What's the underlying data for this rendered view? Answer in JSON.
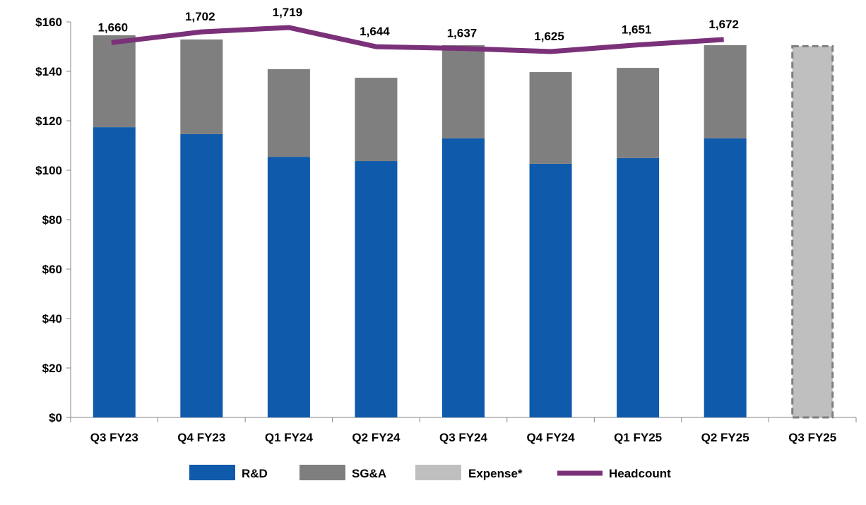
{
  "chart_data": {
    "type": "bar",
    "stacked": true,
    "categories": [
      "Q3 FY23",
      "Q4 FY23",
      "Q1 FY24",
      "Q2 FY24",
      "Q3 FY24",
      "Q4 FY24",
      "Q1 FY25",
      "Q2 FY25",
      "Q3 FY25"
    ],
    "ylim": [
      0,
      160
    ],
    "yticks": [
      0,
      20,
      40,
      60,
      80,
      100,
      120,
      140,
      160
    ],
    "ytick_labels": [
      "$0",
      "$20",
      "$40",
      "$60",
      "$80",
      "$100",
      "$120",
      "$140",
      "$160"
    ],
    "y2lim_hidden": [
      193,
      1741
    ],
    "grid": false,
    "legend_position": "bottom",
    "series": [
      {
        "name": "R&D",
        "type": "bar",
        "color": "#0F5AAA",
        "values": [
          117.4,
          114.6,
          105.4,
          103.7,
          112.9,
          102.6,
          104.9,
          112.9,
          null
        ]
      },
      {
        "name": "SG&A",
        "type": "bar",
        "color": "#7F7F7F",
        "values": [
          37.2,
          38.3,
          35.5,
          33.7,
          37.7,
          37.1,
          36.5,
          37.7,
          null
        ]
      },
      {
        "name": "Expense*",
        "type": "bar",
        "color": "#BFBFBF",
        "border": "dashed",
        "values": [
          null,
          null,
          null,
          null,
          null,
          null,
          null,
          null,
          150.6
        ]
      },
      {
        "name": "Headcount",
        "type": "line",
        "axis": "secondary",
        "color": "#7B3179",
        "values": [
          1660,
          1702,
          1719,
          1644,
          1637,
          1625,
          1651,
          1672,
          null
        ],
        "labels": [
          "1,660",
          "1,702",
          "1,719",
          "1,644",
          "1,637",
          "1,625",
          "1,651",
          "1,672",
          null
        ]
      }
    ]
  }
}
